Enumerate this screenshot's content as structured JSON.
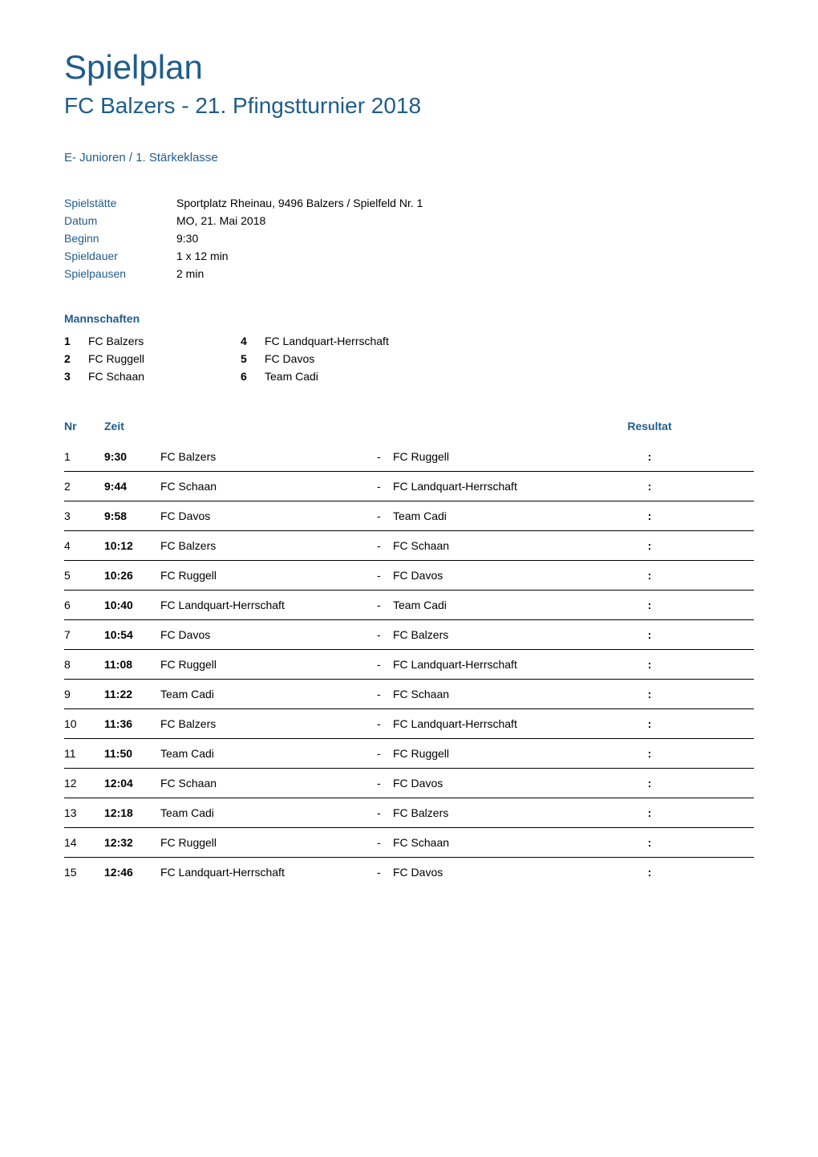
{
  "header": {
    "main_title": "Spielplan",
    "subtitle": "FC Balzers - 21. Pfingstturnier 2018",
    "category": "E- Junioren / 1. Stärkeklasse"
  },
  "info": {
    "spielstatte_label": "Spielstätte",
    "spielstatte_value": "Sportplatz Rheinau, 9496 Balzers / Spielfeld Nr. 1",
    "datum_label": "Datum",
    "datum_value": "MO, 21. Mai 2018",
    "beginn_label": "Beginn",
    "beginn_value": "9:30",
    "spieldauer_label": "Spieldauer",
    "spieldauer_value": "1 x  12  min",
    "spielpausen_label": "Spielpausen",
    "spielpausen_value": "2 min"
  },
  "teams": {
    "heading": "Mannschaften",
    "list": [
      {
        "number": "1",
        "name": "FC Balzers"
      },
      {
        "number": "2",
        "name": "FC Ruggell"
      },
      {
        "number": "3",
        "name": "FC Schaan"
      },
      {
        "number": "4",
        "name": "FC Landquart-Herrschaft"
      },
      {
        "number": "5",
        "name": "FC Davos"
      },
      {
        "number": "6",
        "name": "Team Cadi"
      }
    ]
  },
  "schedule": {
    "headers": {
      "nr": "Nr",
      "zeit": "Zeit",
      "resultat": "Resultat"
    },
    "separator": "-",
    "colon": ":",
    "matches": [
      {
        "nr": "1",
        "zeit": "9:30",
        "home": "FC Balzers",
        "away": "FC Ruggell"
      },
      {
        "nr": "2",
        "zeit": "9:44",
        "home": "FC Schaan",
        "away": "FC Landquart-Herrschaft"
      },
      {
        "nr": "3",
        "zeit": "9:58",
        "home": "FC Davos",
        "away": "Team Cadi"
      },
      {
        "nr": "4",
        "zeit": "10:12",
        "home": "FC Balzers",
        "away": "FC Schaan"
      },
      {
        "nr": "5",
        "zeit": "10:26",
        "home": "FC Ruggell",
        "away": "FC Davos"
      },
      {
        "nr": "6",
        "zeit": "10:40",
        "home": "FC Landquart-Herrschaft",
        "away": "Team Cadi"
      },
      {
        "nr": "7",
        "zeit": "10:54",
        "home": "FC Davos",
        "away": "FC Balzers"
      },
      {
        "nr": "8",
        "zeit": "11:08",
        "home": "FC Ruggell",
        "away": "FC Landquart-Herrschaft"
      },
      {
        "nr": "9",
        "zeit": "11:22",
        "home": "Team Cadi",
        "away": "FC Schaan"
      },
      {
        "nr": "10",
        "zeit": "11:36",
        "home": "FC Balzers",
        "away": "FC Landquart-Herrschaft"
      },
      {
        "nr": "11",
        "zeit": "11:50",
        "home": "Team Cadi",
        "away": "FC Ruggell"
      },
      {
        "nr": "12",
        "zeit": "12:04",
        "home": "FC Schaan",
        "away": "FC Davos"
      },
      {
        "nr": "13",
        "zeit": "12:18",
        "home": "Team Cadi",
        "away": "FC Balzers"
      },
      {
        "nr": "14",
        "zeit": "12:32",
        "home": "FC Ruggell",
        "away": "FC Schaan"
      },
      {
        "nr": "15",
        "zeit": "12:46",
        "home": "FC Landquart-Herrschaft",
        "away": "FC Davos"
      }
    ]
  },
  "colors": {
    "primary_blue": "#1f5c8b",
    "text_black": "#000000",
    "background": "#ffffff",
    "border": "#000000"
  },
  "typography": {
    "main_title_size": 42,
    "subtitle_size": 28,
    "category_size": 15,
    "body_size": 14,
    "font_family": "Arial, Helvetica, sans-serif"
  }
}
